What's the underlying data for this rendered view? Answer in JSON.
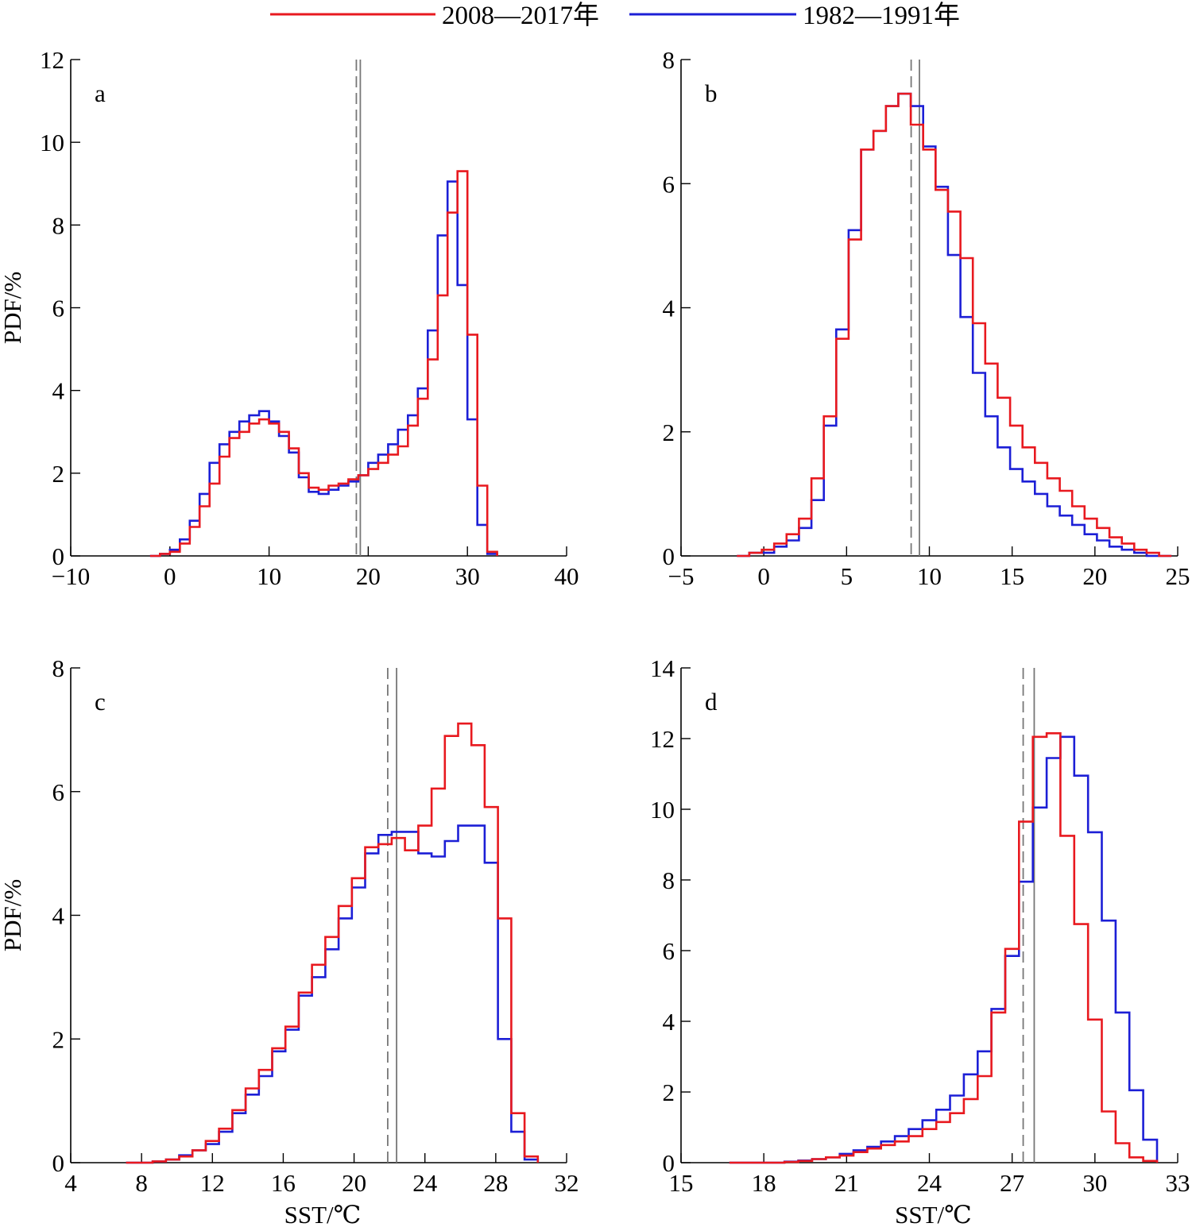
{
  "legend": {
    "entries": [
      {
        "label": "2008—2017年",
        "color": "#e8191f"
      },
      {
        "label": "1982—1991年",
        "color": "#1c1fd6"
      }
    ]
  },
  "chart_data": [
    {
      "panel": "a",
      "type": "step",
      "title": "",
      "xlabel": "",
      "ylabel": "PDF/%",
      "xlim": [
        -10,
        40
      ],
      "ylim": [
        0,
        12
      ],
      "xticks": [
        -10,
        0,
        10,
        20,
        30,
        40
      ],
      "xtick_labels": [
        "−10",
        "0",
        "10",
        "20",
        "30",
        "40"
      ],
      "yticks": [
        0,
        2,
        4,
        6,
        8,
        10,
        12
      ],
      "ytick_labels": [
        "0",
        "2",
        "4",
        "6",
        "8",
        "10",
        "12"
      ],
      "vline_solid": 19.2,
      "vline_dashed": 18.8,
      "bin_width": 0.7,
      "series": [
        {
          "name": "2008—2017年",
          "color": "#e8191f",
          "x": [
            -1.5,
            -0.5,
            0.5,
            1.5,
            2.5,
            3.5,
            4.5,
            5.5,
            6.5,
            7.5,
            8.5,
            9.5,
            10.5,
            11.5,
            12.5,
            13.5,
            14.5,
            15.5,
            16.5,
            17.5,
            18.5,
            19.5,
            20.5,
            21.5,
            22.5,
            23.5,
            24.5,
            25.5,
            26.5,
            27.5,
            28.5,
            29.5,
            30.5,
            31.5,
            32.5
          ],
          "y": [
            0.0,
            0.05,
            0.1,
            0.3,
            0.7,
            1.2,
            1.75,
            2.4,
            2.85,
            3.0,
            3.2,
            3.3,
            3.2,
            3.0,
            2.6,
            2.0,
            1.65,
            1.6,
            1.7,
            1.75,
            1.85,
            1.95,
            2.1,
            2.25,
            2.45,
            2.65,
            3.15,
            3.8,
            4.75,
            6.3,
            8.3,
            9.3,
            5.35,
            1.7,
            0.1
          ]
        },
        {
          "name": "1982—1991年",
          "color": "#1c1fd6",
          "x": [
            -1.5,
            -0.5,
            0.5,
            1.5,
            2.5,
            3.5,
            4.5,
            5.5,
            6.5,
            7.5,
            8.5,
            9.5,
            10.5,
            11.5,
            12.5,
            13.5,
            14.5,
            15.5,
            16.5,
            17.5,
            18.5,
            19.5,
            20.5,
            21.5,
            22.5,
            23.5,
            24.5,
            25.5,
            26.5,
            27.5,
            28.5,
            29.5,
            30.5,
            31.5,
            32.5
          ],
          "y": [
            0.0,
            0.05,
            0.15,
            0.4,
            0.85,
            1.5,
            2.25,
            2.7,
            3.0,
            3.25,
            3.4,
            3.5,
            3.25,
            2.9,
            2.5,
            1.9,
            1.55,
            1.5,
            1.6,
            1.7,
            1.8,
            1.95,
            2.25,
            2.45,
            2.7,
            3.05,
            3.4,
            4.05,
            5.45,
            7.75,
            9.05,
            6.55,
            3.3,
            0.75,
            0.05
          ]
        }
      ]
    },
    {
      "panel": "b",
      "type": "step",
      "title": "",
      "xlabel": "",
      "ylabel": "",
      "xlim": [
        -5,
        25
      ],
      "ylim": [
        0,
        8
      ],
      "xticks": [
        -5,
        0,
        5,
        10,
        15,
        20,
        25
      ],
      "xtick_labels": [
        "−5",
        "0",
        "5",
        "10",
        "15",
        "20",
        "25"
      ],
      "yticks": [
        0,
        2,
        4,
        6,
        8
      ],
      "ytick_labels": [
        "0",
        "2",
        "4",
        "6",
        "8"
      ],
      "vline_solid": 9.4,
      "vline_dashed": 8.9,
      "series": [
        {
          "name": "2008—2017年",
          "color": "#e8191f",
          "x": [
            -1.25,
            -0.5,
            0.25,
            1.0,
            1.75,
            2.5,
            3.25,
            4.0,
            4.75,
            5.5,
            6.25,
            7.0,
            7.75,
            8.5,
            9.25,
            10.0,
            10.75,
            11.5,
            12.25,
            13.0,
            13.75,
            14.5,
            15.25,
            16.0,
            16.75,
            17.5,
            18.25,
            19.0,
            19.75,
            20.5,
            21.25,
            22.0,
            22.75,
            23.5,
            24.25
          ],
          "y": [
            0.0,
            0.05,
            0.1,
            0.2,
            0.35,
            0.6,
            1.25,
            2.25,
            3.5,
            5.1,
            6.55,
            6.85,
            7.25,
            7.45,
            6.95,
            6.55,
            5.9,
            5.55,
            4.8,
            3.75,
            3.1,
            2.55,
            2.1,
            1.75,
            1.5,
            1.25,
            1.05,
            0.8,
            0.6,
            0.45,
            0.3,
            0.2,
            0.1,
            0.05,
            0.0
          ]
        },
        {
          "name": "1982—1991年",
          "color": "#1c1fd6",
          "x": [
            -1.25,
            -0.5,
            0.25,
            1.0,
            1.75,
            2.5,
            3.25,
            4.0,
            4.75,
            5.5,
            6.25,
            7.0,
            7.75,
            8.5,
            9.25,
            10.0,
            10.75,
            11.5,
            12.25,
            13.0,
            13.75,
            14.5,
            15.25,
            16.0,
            16.75,
            17.5,
            18.25,
            19.0,
            19.75,
            20.5,
            21.25,
            22.0,
            22.75,
            23.5,
            24.25
          ],
          "y": [
            0.0,
            0.05,
            0.05,
            0.15,
            0.25,
            0.45,
            0.9,
            2.1,
            3.65,
            5.25,
            6.55,
            6.85,
            7.25,
            7.45,
            7.25,
            6.6,
            5.95,
            4.85,
            3.85,
            2.95,
            2.25,
            1.75,
            1.4,
            1.2,
            1.0,
            0.8,
            0.65,
            0.5,
            0.35,
            0.25,
            0.15,
            0.1,
            0.05,
            0.0,
            0.0
          ]
        }
      ]
    },
    {
      "panel": "c",
      "type": "step",
      "title": "",
      "xlabel": "SST/℃",
      "ylabel": "PDF/%",
      "xlim": [
        4,
        32
      ],
      "ylim": [
        0,
        8
      ],
      "xticks": [
        4,
        8,
        12,
        16,
        20,
        24,
        28,
        32
      ],
      "xtick_labels": [
        "4",
        "8",
        "12",
        "16",
        "20",
        "24",
        "28",
        "32"
      ],
      "yticks": [
        0,
        2,
        4,
        6,
        8
      ],
      "ytick_labels": [
        "0",
        "2",
        "4",
        "6",
        "8"
      ],
      "vline_solid": 22.4,
      "vline_dashed": 21.9,
      "series": [
        {
          "name": "2008—2017年",
          "color": "#e8191f",
          "x": [
            7.5,
            8.25,
            9.0,
            9.75,
            10.5,
            11.25,
            12.0,
            12.75,
            13.5,
            14.25,
            15.0,
            15.75,
            16.5,
            17.25,
            18.0,
            18.75,
            19.5,
            20.25,
            21.0,
            21.75,
            22.5,
            23.25,
            24.0,
            24.75,
            25.5,
            26.25,
            27.0,
            27.75,
            28.5,
            29.25,
            30.0
          ],
          "y": [
            0.0,
            0.0,
            0.02,
            0.05,
            0.1,
            0.2,
            0.35,
            0.55,
            0.85,
            1.2,
            1.5,
            1.85,
            2.2,
            2.75,
            3.2,
            3.65,
            4.15,
            4.6,
            5.1,
            5.15,
            5.25,
            5.05,
            5.45,
            6.05,
            6.9,
            7.1,
            6.75,
            5.75,
            3.95,
            0.8,
            0.1
          ]
        },
        {
          "name": "1982—1991年",
          "color": "#1c1fd6",
          "x": [
            7.5,
            8.25,
            9.0,
            9.75,
            10.5,
            11.25,
            12.0,
            12.75,
            13.5,
            14.25,
            15.0,
            15.75,
            16.5,
            17.25,
            18.0,
            18.75,
            19.5,
            20.25,
            21.0,
            21.75,
            22.5,
            23.25,
            24.0,
            24.75,
            25.5,
            26.25,
            27.0,
            27.75,
            28.5,
            29.25,
            30.0
          ],
          "y": [
            0.0,
            0.0,
            0.02,
            0.05,
            0.12,
            0.2,
            0.3,
            0.5,
            0.8,
            1.1,
            1.4,
            1.8,
            2.15,
            2.7,
            3.0,
            3.45,
            3.95,
            4.45,
            5.0,
            5.3,
            5.35,
            5.35,
            5.0,
            4.95,
            5.2,
            5.45,
            5.45,
            4.85,
            2.0,
            0.5,
            0.05
          ]
        }
      ]
    },
    {
      "panel": "d",
      "type": "step",
      "title": "",
      "xlabel": "SST/℃",
      "ylabel": "",
      "xlim": [
        15,
        33
      ],
      "ylim": [
        0,
        14
      ],
      "xticks": [
        15,
        18,
        21,
        24,
        27,
        30,
        33
      ],
      "xtick_labels": [
        "15",
        "18",
        "21",
        "24",
        "27",
        "30",
        "33"
      ],
      "yticks": [
        0,
        2,
        4,
        6,
        8,
        10,
        12,
        14
      ],
      "ytick_labels": [
        "0",
        "2",
        "4",
        "6",
        "8",
        "10",
        "12",
        "14"
      ],
      "vline_solid": 27.8,
      "vline_dashed": 27.4,
      "series": [
        {
          "name": "2008—2017年",
          "color": "#e8191f",
          "x": [
            17.0,
            17.5,
            18.0,
            18.5,
            19.0,
            19.5,
            20.0,
            20.5,
            21.0,
            21.5,
            22.0,
            22.5,
            23.0,
            23.5,
            24.0,
            24.5,
            25.0,
            25.5,
            26.0,
            26.5,
            27.0,
            27.5,
            28.0,
            28.5,
            29.0,
            29.5,
            30.0,
            30.5,
            31.0,
            31.5,
            32.0
          ],
          "y": [
            0.0,
            0.0,
            0.0,
            0.0,
            0.02,
            0.05,
            0.1,
            0.15,
            0.2,
            0.3,
            0.4,
            0.5,
            0.6,
            0.75,
            0.95,
            1.15,
            1.4,
            1.8,
            2.45,
            4.25,
            6.05,
            9.65,
            12.05,
            12.15,
            9.25,
            6.75,
            4.05,
            1.45,
            0.55,
            0.15,
            0.05
          ]
        },
        {
          "name": "1982—1991年",
          "color": "#1c1fd6",
          "x": [
            17.0,
            17.5,
            18.0,
            18.5,
            19.0,
            19.5,
            20.0,
            20.5,
            21.0,
            21.5,
            22.0,
            22.5,
            23.0,
            23.5,
            24.0,
            24.5,
            25.0,
            25.5,
            26.0,
            26.5,
            27.0,
            27.5,
            28.0,
            28.5,
            29.0,
            29.5,
            30.0,
            30.5,
            31.0,
            31.5,
            32.0
          ],
          "y": [
            0.0,
            0.0,
            0.0,
            0.0,
            0.03,
            0.06,
            0.1,
            0.15,
            0.25,
            0.35,
            0.45,
            0.6,
            0.75,
            0.95,
            1.2,
            1.5,
            1.9,
            2.5,
            3.15,
            4.35,
            5.85,
            7.95,
            10.05,
            11.45,
            12.05,
            10.95,
            9.35,
            6.85,
            4.25,
            2.05,
            0.65
          ]
        }
      ]
    }
  ]
}
